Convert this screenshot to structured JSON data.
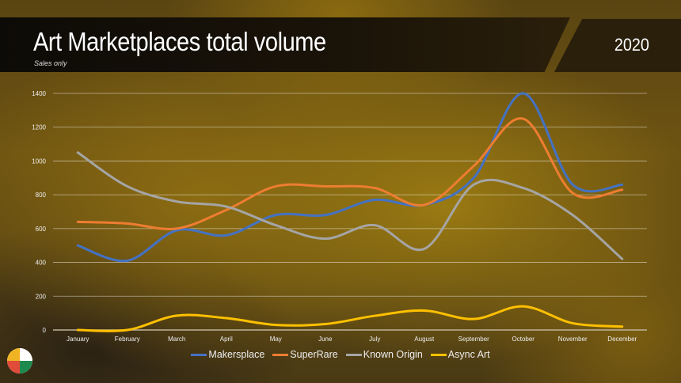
{
  "header": {
    "title": "Art Marketplaces total volume",
    "subtitle": "Sales only",
    "year": "2020"
  },
  "chart_data": {
    "type": "line",
    "title": "Art Marketplaces total volume",
    "subtitle": "Sales only",
    "categories": [
      "January",
      "February",
      "March",
      "April",
      "May",
      "June",
      "July",
      "August",
      "September",
      "October",
      "November",
      "December"
    ],
    "ylim": [
      0,
      1400
    ],
    "yticks": [
      0,
      200,
      400,
      600,
      800,
      1000,
      1200,
      1400
    ],
    "grid": true,
    "legend": "bottom",
    "series": [
      {
        "name": "Makersplace",
        "color": "#4472c4",
        "values": [
          500,
          410,
          590,
          560,
          680,
          680,
          770,
          740,
          900,
          1400,
          860,
          860
        ]
      },
      {
        "name": "SuperRare",
        "color": "#ed7d31",
        "values": [
          640,
          630,
          600,
          710,
          850,
          850,
          840,
          740,
          970,
          1250,
          810,
          830
        ]
      },
      {
        "name": "Known Origin",
        "color": "#a5a5a5",
        "values": [
          1050,
          850,
          760,
          730,
          620,
          540,
          620,
          480,
          860,
          840,
          680,
          420
        ]
      },
      {
        "name": "Async Art",
        "color": "#ffc000",
        "values": [
          0,
          0,
          85,
          70,
          30,
          35,
          84,
          115,
          65,
          140,
          40,
          20
        ]
      }
    ]
  }
}
